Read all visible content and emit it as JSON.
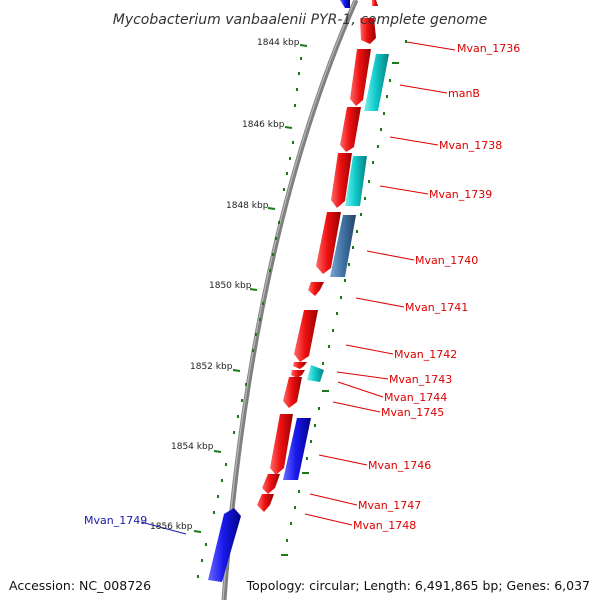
{
  "title": "Mycobacterium vanbaalenii PYR-1, complete genome",
  "footer": {
    "accession": "Accession: NC_008726",
    "topology": "Topology: circular; Length: 6,491,865 bp; Genes: 6,037"
  },
  "colors": {
    "backbone": "#808080",
    "tick": "#1a7a1a",
    "forward_gene": "#ee1111",
    "reverse_gene": "#2222ee",
    "cyan_gene": "#11cccc",
    "steel_gene": "#4477aa",
    "label_red": "#dd0000",
    "label_blue": "#1a1aaa"
  },
  "kbp_ticks": [
    "1844 kbp",
    "1846 kbp",
    "1848 kbp",
    "1850 kbp",
    "1852 kbp",
    "1854 kbp",
    "1856 kbp"
  ],
  "gene_labels": [
    {
      "name": "Mvan_1736",
      "color": "red"
    },
    {
      "name": "manB",
      "color": "red"
    },
    {
      "name": "Mvan_1738",
      "color": "red"
    },
    {
      "name": "Mvan_1739",
      "color": "red"
    },
    {
      "name": "Mvan_1740",
      "color": "red"
    },
    {
      "name": "Mvan_1741",
      "color": "red"
    },
    {
      "name": "Mvan_1742",
      "color": "red"
    },
    {
      "name": "Mvan_1743",
      "color": "red"
    },
    {
      "name": "Mvan_1744",
      "color": "red"
    },
    {
      "name": "Mvan_1745",
      "color": "red"
    },
    {
      "name": "Mvan_1746",
      "color": "red"
    },
    {
      "name": "Mvan_1747",
      "color": "red"
    },
    {
      "name": "Mvan_1748",
      "color": "red"
    },
    {
      "name": "Mvan_1749",
      "color": "blue"
    }
  ]
}
